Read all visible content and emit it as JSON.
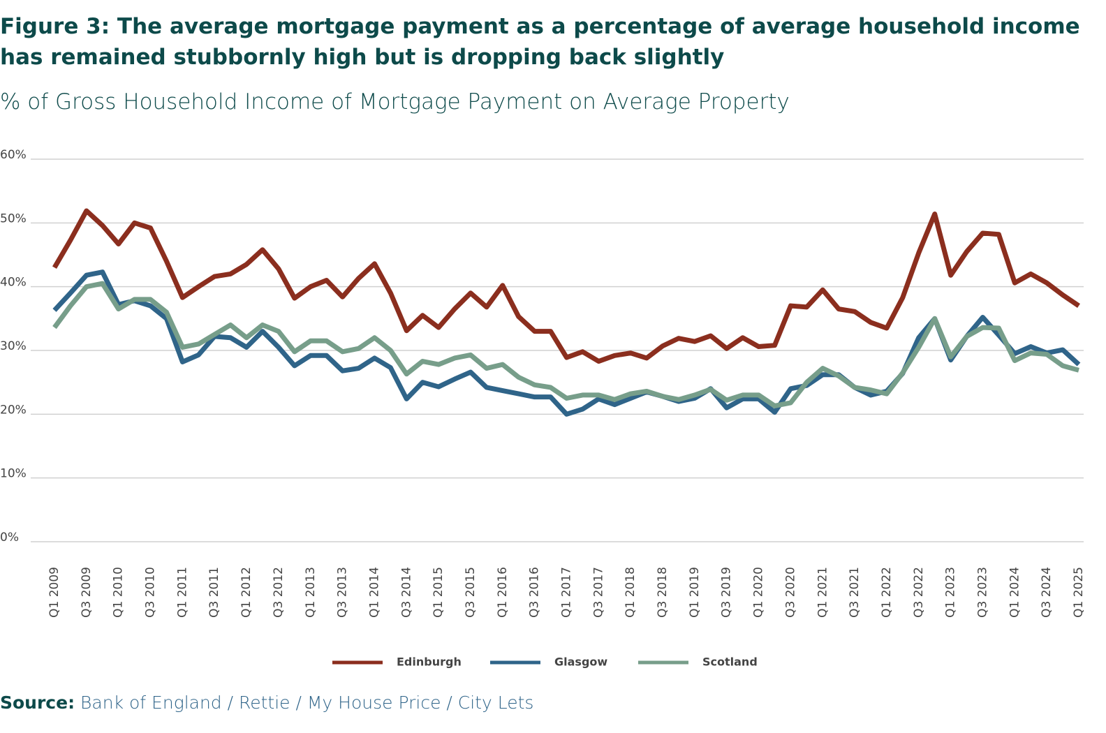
{
  "chart_data": {
    "type": "line",
    "title": "Figure 3: The average mortgage payment as a percentage of average household income has remained stubbornly high but is dropping back slightly",
    "subtitle": "% of Gross Household Income of Mortgage Payment on Average Property",
    "source_label": "Source:",
    "source_text": "Bank of England / Rettie / My House Price / City Lets",
    "categories": [
      "Q1 2009",
      null,
      "Q3 2009",
      null,
      "Q1 2010",
      null,
      "Q3 2010",
      null,
      "Q1 2011",
      null,
      "Q3 2011",
      null,
      "Q1 2012",
      null,
      "Q3 2012",
      null,
      "Q1 2013",
      null,
      "Q3 2013",
      null,
      "Q1 2014",
      null,
      "Q3 2014",
      null,
      "Q1 2015",
      null,
      "Q3 2015",
      null,
      "Q1 2016",
      null,
      "Q3 2016",
      null,
      "Q1 2017",
      null,
      "Q3 2017",
      null,
      "Q1 2018",
      null,
      "Q3 2018",
      null,
      "Q1 2019",
      null,
      "Q3 2019",
      null,
      "Q1 2020",
      null,
      "Q3 2020",
      null,
      "Q1 2021",
      null,
      "Q3 2021",
      null,
      "Q1 2022",
      null,
      "Q3 2022",
      null,
      "Q1 2023",
      null,
      "Q3 2023",
      null,
      "Q1 2024",
      null,
      "Q3 2024",
      null,
      "Q1 2025"
    ],
    "series": [
      {
        "name": "Edinburgh",
        "color": "#8b2e1e",
        "values": [
          43,
          47.3,
          51.9,
          49.6,
          46.7,
          50,
          49.2,
          44,
          38.3,
          40,
          41.6,
          42,
          43.5,
          45.8,
          42.8,
          38.2,
          40,
          41,
          38.4,
          41.3,
          43.6,
          39,
          33.1,
          35.5,
          33.6,
          36.5,
          39,
          36.8,
          40.2,
          35.3,
          33,
          33,
          28.9,
          29.8,
          28.3,
          29.2,
          29.6,
          28.8,
          30.7,
          31.9,
          31.4,
          32.3,
          30.3,
          32,
          30.6,
          30.8,
          37,
          36.8,
          39.5,
          36.5,
          36.1,
          34.4,
          33.5,
          38.3,
          45.3,
          51.4,
          41.8,
          45.5,
          48.4,
          48.2,
          40.6,
          42,
          40.6,
          38.7,
          37
        ]
      },
      {
        "name": "Glasgow",
        "color": "#2f6489",
        "values": [
          36.3,
          39,
          41.8,
          42.3,
          37.2,
          37.8,
          37,
          35,
          28.2,
          29.3,
          32.2,
          32,
          30.5,
          33,
          30.5,
          27.6,
          29.2,
          29.2,
          26.8,
          27.2,
          28.8,
          27.3,
          22.4,
          25,
          24.3,
          25.5,
          26.6,
          24.2,
          23.7,
          23.2,
          22.7,
          22.7,
          20,
          20.8,
          22.4,
          21.5,
          22.5,
          23.5,
          22.8,
          22,
          22.5,
          24,
          21,
          22.4,
          22.4,
          20.3,
          24,
          24.5,
          26.2,
          26.2,
          24.2,
          23,
          23.6,
          26.4,
          32,
          35,
          28.5,
          32.2,
          35.2,
          32.4,
          29.5,
          30.6,
          29.6,
          30.1,
          27.8
        ]
      },
      {
        "name": "Scotland",
        "color": "#779e8a",
        "values": [
          33.6,
          37,
          40,
          40.5,
          36.5,
          38,
          38,
          36,
          30.5,
          31,
          32.5,
          34,
          32,
          34,
          33,
          29.8,
          31.5,
          31.5,
          29.8,
          30.3,
          32,
          30,
          26.3,
          28.3,
          27.8,
          28.8,
          29.3,
          27.2,
          27.8,
          25.8,
          24.6,
          24.2,
          22.5,
          23,
          23,
          22.3,
          23.2,
          23.6,
          22.8,
          22.3,
          23,
          23.9,
          22.2,
          23,
          23,
          21.3,
          21.8,
          25,
          27.2,
          26,
          24.2,
          23.8,
          23.2,
          26.5,
          30.5,
          35,
          29,
          32.2,
          33.6,
          33.5,
          28.4,
          29.6,
          29.4,
          27.6,
          26.9
        ]
      }
    ],
    "ylim": [
      0,
      60
    ],
    "yticks": [
      {
        "value": 0,
        "label": "0%"
      },
      {
        "value": 10,
        "label": "10%"
      },
      {
        "value": 20,
        "label": "20%"
      },
      {
        "value": 30,
        "label": "30%"
      },
      {
        "value": 40,
        "label": "40%"
      },
      {
        "value": 50,
        "label": "50%"
      },
      {
        "value": 60,
        "label": "60%"
      }
    ],
    "grid": true,
    "legend": "bottom"
  }
}
